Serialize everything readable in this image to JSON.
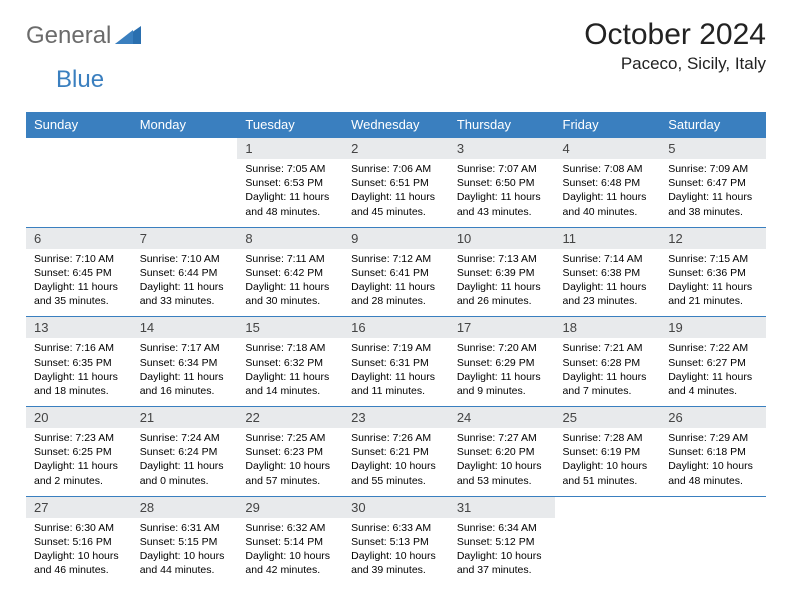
{
  "brand": {
    "name1": "General",
    "name2": "Blue"
  },
  "title": "October 2024",
  "location": "Paceco, Sicily, Italy",
  "colors": {
    "header_bg": "#3a7fbf",
    "header_fg": "#ffffff",
    "daynum_bg": "#e8eaec",
    "border": "#3a7fbf",
    "logo_gray": "#6b6b6b",
    "logo_blue": "#3a7fbf"
  },
  "weekdays": [
    "Sunday",
    "Monday",
    "Tuesday",
    "Wednesday",
    "Thursday",
    "Friday",
    "Saturday"
  ],
  "weeks": [
    [
      null,
      null,
      {
        "n": "1",
        "sr": "7:05 AM",
        "ss": "6:53 PM",
        "dl": "11 hours and 48 minutes."
      },
      {
        "n": "2",
        "sr": "7:06 AM",
        "ss": "6:51 PM",
        "dl": "11 hours and 45 minutes."
      },
      {
        "n": "3",
        "sr": "7:07 AM",
        "ss": "6:50 PM",
        "dl": "11 hours and 43 minutes."
      },
      {
        "n": "4",
        "sr": "7:08 AM",
        "ss": "6:48 PM",
        "dl": "11 hours and 40 minutes."
      },
      {
        "n": "5",
        "sr": "7:09 AM",
        "ss": "6:47 PM",
        "dl": "11 hours and 38 minutes."
      }
    ],
    [
      {
        "n": "6",
        "sr": "7:10 AM",
        "ss": "6:45 PM",
        "dl": "11 hours and 35 minutes."
      },
      {
        "n": "7",
        "sr": "7:10 AM",
        "ss": "6:44 PM",
        "dl": "11 hours and 33 minutes."
      },
      {
        "n": "8",
        "sr": "7:11 AM",
        "ss": "6:42 PM",
        "dl": "11 hours and 30 minutes."
      },
      {
        "n": "9",
        "sr": "7:12 AM",
        "ss": "6:41 PM",
        "dl": "11 hours and 28 minutes."
      },
      {
        "n": "10",
        "sr": "7:13 AM",
        "ss": "6:39 PM",
        "dl": "11 hours and 26 minutes."
      },
      {
        "n": "11",
        "sr": "7:14 AM",
        "ss": "6:38 PM",
        "dl": "11 hours and 23 minutes."
      },
      {
        "n": "12",
        "sr": "7:15 AM",
        "ss": "6:36 PM",
        "dl": "11 hours and 21 minutes."
      }
    ],
    [
      {
        "n": "13",
        "sr": "7:16 AM",
        "ss": "6:35 PM",
        "dl": "11 hours and 18 minutes."
      },
      {
        "n": "14",
        "sr": "7:17 AM",
        "ss": "6:34 PM",
        "dl": "11 hours and 16 minutes."
      },
      {
        "n": "15",
        "sr": "7:18 AM",
        "ss": "6:32 PM",
        "dl": "11 hours and 14 minutes."
      },
      {
        "n": "16",
        "sr": "7:19 AM",
        "ss": "6:31 PM",
        "dl": "11 hours and 11 minutes."
      },
      {
        "n": "17",
        "sr": "7:20 AM",
        "ss": "6:29 PM",
        "dl": "11 hours and 9 minutes."
      },
      {
        "n": "18",
        "sr": "7:21 AM",
        "ss": "6:28 PM",
        "dl": "11 hours and 7 minutes."
      },
      {
        "n": "19",
        "sr": "7:22 AM",
        "ss": "6:27 PM",
        "dl": "11 hours and 4 minutes."
      }
    ],
    [
      {
        "n": "20",
        "sr": "7:23 AM",
        "ss": "6:25 PM",
        "dl": "11 hours and 2 minutes."
      },
      {
        "n": "21",
        "sr": "7:24 AM",
        "ss": "6:24 PM",
        "dl": "11 hours and 0 minutes."
      },
      {
        "n": "22",
        "sr": "7:25 AM",
        "ss": "6:23 PM",
        "dl": "10 hours and 57 minutes."
      },
      {
        "n": "23",
        "sr": "7:26 AM",
        "ss": "6:21 PM",
        "dl": "10 hours and 55 minutes."
      },
      {
        "n": "24",
        "sr": "7:27 AM",
        "ss": "6:20 PM",
        "dl": "10 hours and 53 minutes."
      },
      {
        "n": "25",
        "sr": "7:28 AM",
        "ss": "6:19 PM",
        "dl": "10 hours and 51 minutes."
      },
      {
        "n": "26",
        "sr": "7:29 AM",
        "ss": "6:18 PM",
        "dl": "10 hours and 48 minutes."
      }
    ],
    [
      {
        "n": "27",
        "sr": "6:30 AM",
        "ss": "5:16 PM",
        "dl": "10 hours and 46 minutes."
      },
      {
        "n": "28",
        "sr": "6:31 AM",
        "ss": "5:15 PM",
        "dl": "10 hours and 44 minutes."
      },
      {
        "n": "29",
        "sr": "6:32 AM",
        "ss": "5:14 PM",
        "dl": "10 hours and 42 minutes."
      },
      {
        "n": "30",
        "sr": "6:33 AM",
        "ss": "5:13 PM",
        "dl": "10 hours and 39 minutes."
      },
      {
        "n": "31",
        "sr": "6:34 AM",
        "ss": "5:12 PM",
        "dl": "10 hours and 37 minutes."
      },
      null,
      null
    ]
  ],
  "labels": {
    "sunrise": "Sunrise:",
    "sunset": "Sunset:",
    "daylight": "Daylight:"
  }
}
